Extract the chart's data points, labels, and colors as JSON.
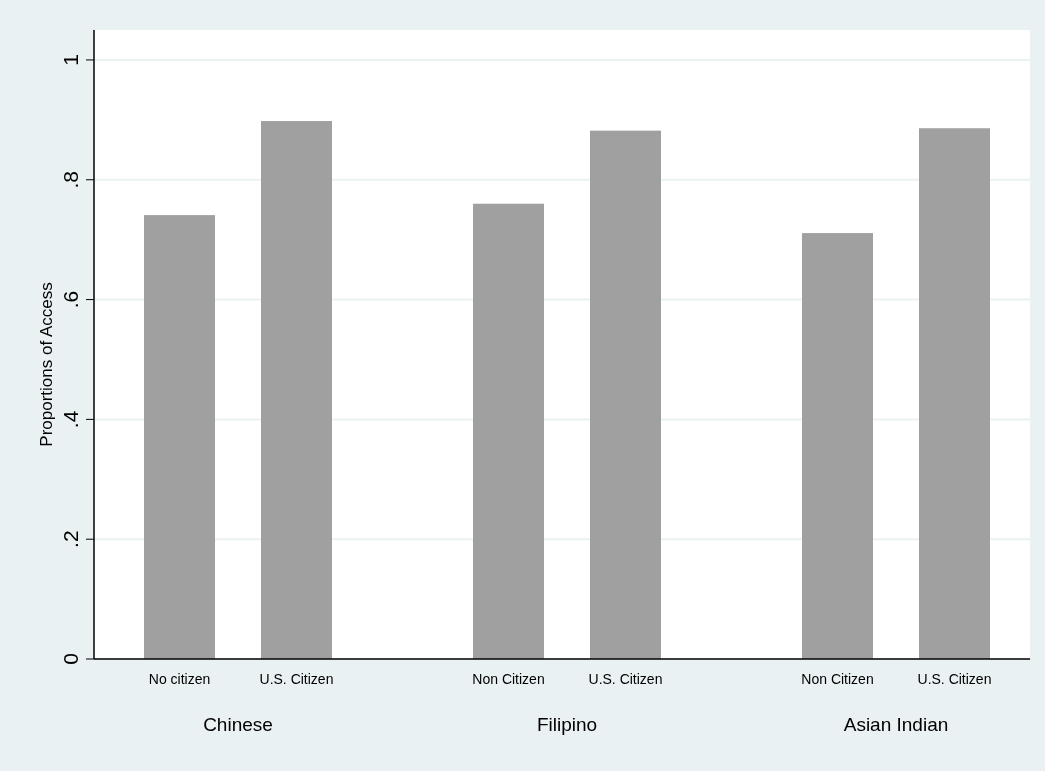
{
  "chart_data": {
    "type": "bar",
    "ylabel": "Proportions of Access",
    "categories": [
      "No citizen",
      "U.S. Citizen",
      "Non Citizen",
      "U.S. Citizen",
      "Non Citizen",
      "U.S. Citizen"
    ],
    "values": [
      0.741,
      0.898,
      0.76,
      0.882,
      0.711,
      0.886
    ],
    "color": "#a0a0a0",
    "ylim": [
      0,
      1.05
    ],
    "yticks": [
      0,
      {
        "value": 0.2,
        "label": ".2"
      },
      {
        "value": 0.4,
        "label": ".4"
      },
      {
        "value": 0.6,
        "label": ".6"
      },
      {
        "value": 0.8,
        "label": ".8"
      },
      1
    ],
    "grid": "y",
    "annotations": [
      "Chinese",
      "Filipino",
      "Asian Indian"
    ]
  }
}
